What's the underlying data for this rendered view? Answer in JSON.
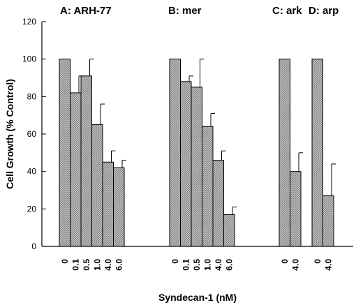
{
  "chart_data": {
    "type": "bar",
    "title": "",
    "xlabel": "Syndecan-1 (nM)",
    "ylabel": "Cell Growth (% Control)",
    "ylim": [
      0,
      120
    ],
    "yticks": [
      0,
      20,
      40,
      60,
      80,
      100,
      120
    ],
    "grid": false,
    "legend": "none",
    "bar_fill": "crosshatch-gray",
    "colors": {
      "bar_fill": "#bdbdbd",
      "hatch": "#7a7a7a",
      "stroke": "#000000"
    },
    "groups": [
      {
        "label": "A: ARH-77",
        "categories": [
          "0",
          "0.1",
          "0.5",
          "1.0",
          "4.0",
          "6.0"
        ],
        "values": [
          100,
          82,
          91,
          65,
          45,
          42
        ],
        "errors": [
          0,
          9,
          9,
          11,
          6,
          4
        ]
      },
      {
        "label": "B: mer",
        "categories": [
          "0",
          "0.1",
          "0.5",
          "1.0",
          "4.0",
          "6.0"
        ],
        "values": [
          100,
          88,
          85,
          64,
          46,
          17
        ],
        "errors": [
          0,
          3,
          15,
          7,
          5,
          4
        ]
      },
      {
        "label": "C: ark",
        "categories": [
          "0",
          "4.0"
        ],
        "values": [
          100,
          40
        ],
        "errors": [
          0,
          10
        ]
      },
      {
        "label": "D: arp",
        "categories": [
          "0",
          "4.0"
        ],
        "values": [
          100,
          27
        ],
        "errors": [
          0,
          17
        ]
      }
    ]
  }
}
